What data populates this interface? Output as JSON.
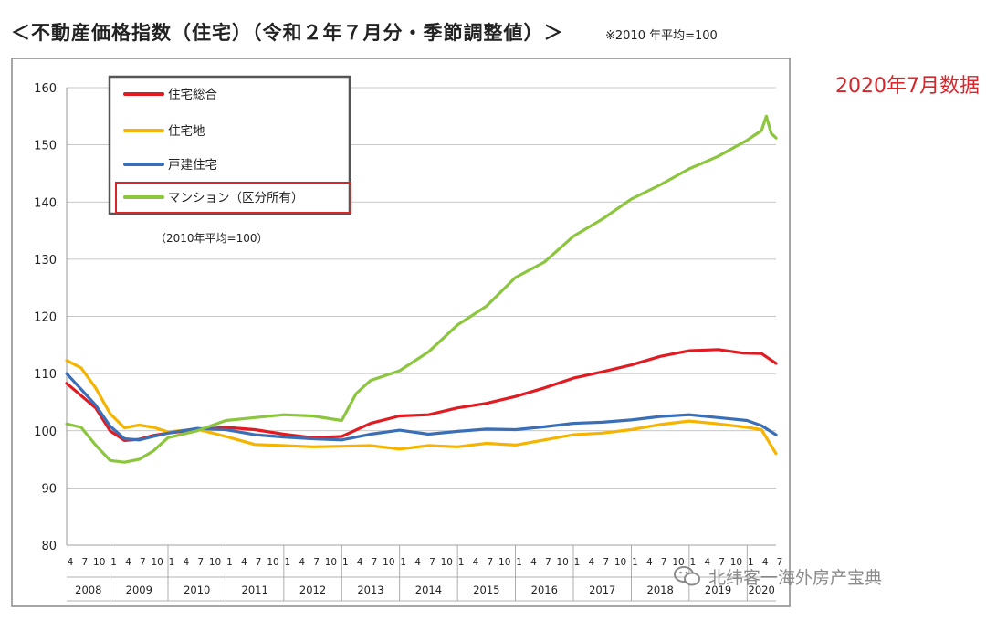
{
  "header": {
    "title": "＜不動産価格指数（住宅）（令和２年７月分・季節調整値）＞",
    "note": "※2010 年平均=100"
  },
  "side_label": "2020年7月数据",
  "watermark": "北纬客一海外房产宝典",
  "chart_data": {
    "type": "line",
    "title": "",
    "xlabel": "",
    "ylabel": "",
    "ylim": [
      80,
      160
    ],
    "y_ticks": [
      80,
      90,
      100,
      110,
      120,
      130,
      140,
      150,
      160
    ],
    "x_start": "2008-04",
    "x_end": "2020-07",
    "year_labels": [
      "2008",
      "2009",
      "2010",
      "2011",
      "2012",
      "2013",
      "2014",
      "2015",
      "2016",
      "2017",
      "2018",
      "2019",
      "2020"
    ],
    "month_ticks": [
      "1",
      "4",
      "7",
      "10"
    ],
    "grid": true,
    "legend_position": "top-left",
    "legend_note": "（2010年平均=100）",
    "series": [
      {
        "name": "住宅総合",
        "color": "#e11b22",
        "points": [
          [
            "2008-04",
            108.3
          ],
          [
            "2008-10",
            104.0
          ],
          [
            "2009-01",
            100.0
          ],
          [
            "2009-04",
            98.3
          ],
          [
            "2009-07",
            98.5
          ],
          [
            "2009-10",
            99.2
          ],
          [
            "2010-01",
            99.6
          ],
          [
            "2010-07",
            100.2
          ],
          [
            "2011-01",
            100.6
          ],
          [
            "2011-07",
            100.2
          ],
          [
            "2012-01",
            99.4
          ],
          [
            "2012-07",
            98.8
          ],
          [
            "2013-01",
            99.0
          ],
          [
            "2013-07",
            101.3
          ],
          [
            "2014-01",
            102.6
          ],
          [
            "2014-07",
            102.8
          ],
          [
            "2015-01",
            104.0
          ],
          [
            "2015-07",
            104.8
          ],
          [
            "2016-01",
            106.0
          ],
          [
            "2016-07",
            107.5
          ],
          [
            "2017-01",
            109.2
          ],
          [
            "2017-07",
            110.3
          ],
          [
            "2018-01",
            111.5
          ],
          [
            "2018-07",
            113.0
          ],
          [
            "2019-01",
            114.0
          ],
          [
            "2019-07",
            114.2
          ],
          [
            "2019-12",
            113.6
          ],
          [
            "2020-04",
            113.5
          ],
          [
            "2020-07",
            111.8
          ]
        ]
      },
      {
        "name": "住宅地",
        "color": "#f5b400",
        "points": [
          [
            "2008-04",
            112.3
          ],
          [
            "2008-07",
            111.0
          ],
          [
            "2008-10",
            107.5
          ],
          [
            "2009-01",
            103.0
          ],
          [
            "2009-04",
            100.5
          ],
          [
            "2009-07",
            101.0
          ],
          [
            "2009-10",
            100.6
          ],
          [
            "2010-01",
            99.8
          ],
          [
            "2010-07",
            100.3
          ],
          [
            "2011-01",
            99.0
          ],
          [
            "2011-07",
            97.6
          ],
          [
            "2012-01",
            97.4
          ],
          [
            "2012-07",
            97.2
          ],
          [
            "2013-01",
            97.3
          ],
          [
            "2013-07",
            97.4
          ],
          [
            "2014-01",
            96.8
          ],
          [
            "2014-07",
            97.4
          ],
          [
            "2015-01",
            97.2
          ],
          [
            "2015-07",
            97.8
          ],
          [
            "2016-01",
            97.5
          ],
          [
            "2016-07",
            98.4
          ],
          [
            "2017-01",
            99.3
          ],
          [
            "2017-07",
            99.6
          ],
          [
            "2018-01",
            100.2
          ],
          [
            "2018-07",
            101.1
          ],
          [
            "2019-01",
            101.7
          ],
          [
            "2019-07",
            101.2
          ],
          [
            "2020-01",
            100.6
          ],
          [
            "2020-04",
            100.2
          ],
          [
            "2020-07",
            96.0
          ]
        ]
      },
      {
        "name": "戸建住宅",
        "color": "#3a6fb7",
        "points": [
          [
            "2008-04",
            110.0
          ],
          [
            "2008-10",
            104.5
          ],
          [
            "2009-01",
            100.8
          ],
          [
            "2009-04",
            98.6
          ],
          [
            "2009-07",
            98.4
          ],
          [
            "2009-10",
            99.0
          ],
          [
            "2010-01",
            99.6
          ],
          [
            "2010-07",
            100.4
          ],
          [
            "2011-01",
            100.2
          ],
          [
            "2011-07",
            99.3
          ],
          [
            "2012-01",
            98.9
          ],
          [
            "2012-07",
            98.6
          ],
          [
            "2013-01",
            98.4
          ],
          [
            "2013-07",
            99.4
          ],
          [
            "2014-01",
            100.1
          ],
          [
            "2014-07",
            99.4
          ],
          [
            "2015-01",
            99.9
          ],
          [
            "2015-07",
            100.3
          ],
          [
            "2016-01",
            100.2
          ],
          [
            "2016-07",
            100.7
          ],
          [
            "2017-01",
            101.3
          ],
          [
            "2017-07",
            101.5
          ],
          [
            "2018-01",
            101.9
          ],
          [
            "2018-07",
            102.5
          ],
          [
            "2019-01",
            102.8
          ],
          [
            "2019-07",
            102.3
          ],
          [
            "2020-01",
            101.8
          ],
          [
            "2020-04",
            100.9
          ],
          [
            "2020-07",
            99.3
          ]
        ]
      },
      {
        "name": "マンション（区分所有）",
        "color": "#8cc63f",
        "points": [
          [
            "2008-04",
            101.2
          ],
          [
            "2008-07",
            100.6
          ],
          [
            "2008-10",
            97.5
          ],
          [
            "2009-01",
            94.8
          ],
          [
            "2009-04",
            94.5
          ],
          [
            "2009-07",
            95.0
          ],
          [
            "2009-10",
            96.5
          ],
          [
            "2010-01",
            98.8
          ],
          [
            "2010-07",
            100.0
          ],
          [
            "2011-01",
            101.8
          ],
          [
            "2011-07",
            102.3
          ],
          [
            "2012-01",
            102.8
          ],
          [
            "2012-07",
            102.6
          ],
          [
            "2013-01",
            101.8
          ],
          [
            "2013-04",
            106.5
          ],
          [
            "2013-07",
            108.8
          ],
          [
            "2014-01",
            110.5
          ],
          [
            "2014-07",
            113.8
          ],
          [
            "2015-01",
            118.5
          ],
          [
            "2015-07",
            121.8
          ],
          [
            "2016-01",
            126.8
          ],
          [
            "2016-07",
            129.5
          ],
          [
            "2017-01",
            134.0
          ],
          [
            "2017-07",
            137.0
          ],
          [
            "2018-01",
            140.5
          ],
          [
            "2018-07",
            143.0
          ],
          [
            "2019-01",
            145.8
          ],
          [
            "2019-07",
            148.0
          ],
          [
            "2020-01",
            150.8
          ],
          [
            "2020-04",
            152.5
          ],
          [
            "2020-05",
            155.0
          ],
          [
            "2020-06",
            152.0
          ],
          [
            "2020-07",
            151.2
          ]
        ]
      }
    ]
  }
}
